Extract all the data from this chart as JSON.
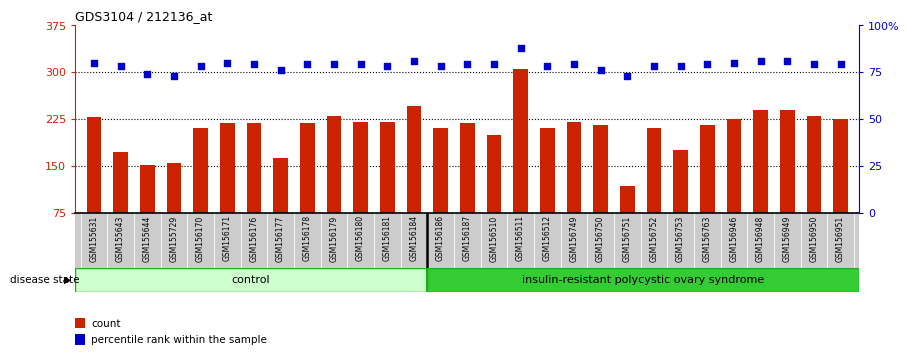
{
  "title": "GDS3104 / 212136_at",
  "samples": [
    "GSM155631",
    "GSM155643",
    "GSM155644",
    "GSM155729",
    "GSM156170",
    "GSM156171",
    "GSM156176",
    "GSM156177",
    "GSM156178",
    "GSM156179",
    "GSM156180",
    "GSM156181",
    "GSM156184",
    "GSM156186",
    "GSM156187",
    "GSM156510",
    "GSM156511",
    "GSM156512",
    "GSM156749",
    "GSM156750",
    "GSM156751",
    "GSM156752",
    "GSM156753",
    "GSM156763",
    "GSM156946",
    "GSM156948",
    "GSM156949",
    "GSM156950",
    "GSM156951"
  ],
  "bar_values": [
    228,
    172,
    152,
    155,
    210,
    218,
    218,
    163,
    218,
    230,
    220,
    220,
    245,
    210,
    218,
    200,
    305,
    210,
    220,
    215,
    118,
    210,
    175,
    215,
    225,
    240,
    240,
    230,
    225
  ],
  "dot_pct": [
    80,
    78,
    74,
    73,
    78,
    80,
    79,
    76,
    79,
    79,
    79,
    78,
    81,
    78,
    79,
    79,
    88,
    78,
    79,
    76,
    73,
    78,
    78,
    79,
    80,
    81,
    81,
    79,
    79
  ],
  "control_count": 13,
  "ylim_left": [
    75,
    375
  ],
  "ylim_right": [
    0,
    100
  ],
  "yticks_left": [
    75,
    150,
    225,
    300,
    375
  ],
  "ytick_labels_left": [
    "75",
    "150",
    "225",
    "300",
    "375"
  ],
  "yticks_right": [
    0,
    25,
    50,
    75,
    100
  ],
  "ytick_labels_right": [
    "0",
    "25",
    "50",
    "75",
    "100%"
  ],
  "bar_color": "#CC2200",
  "dot_color": "#0000CC",
  "control_bg": "#CCFFCC",
  "disease_bg": "#33CC33",
  "control_label": "control",
  "disease_label": "insulin-resistant polycystic ovary syndrome",
  "legend_bar": "count",
  "legend_dot": "percentile rank within the sample",
  "disease_state_label": "disease state",
  "left_axis_color": "#CC2200",
  "right_axis_color": "#0000CC",
  "hlines": [
    150,
    225,
    300
  ],
  "tick_bg_color": "#CCCCCC",
  "tick_divider_color": "#FFFFFF"
}
